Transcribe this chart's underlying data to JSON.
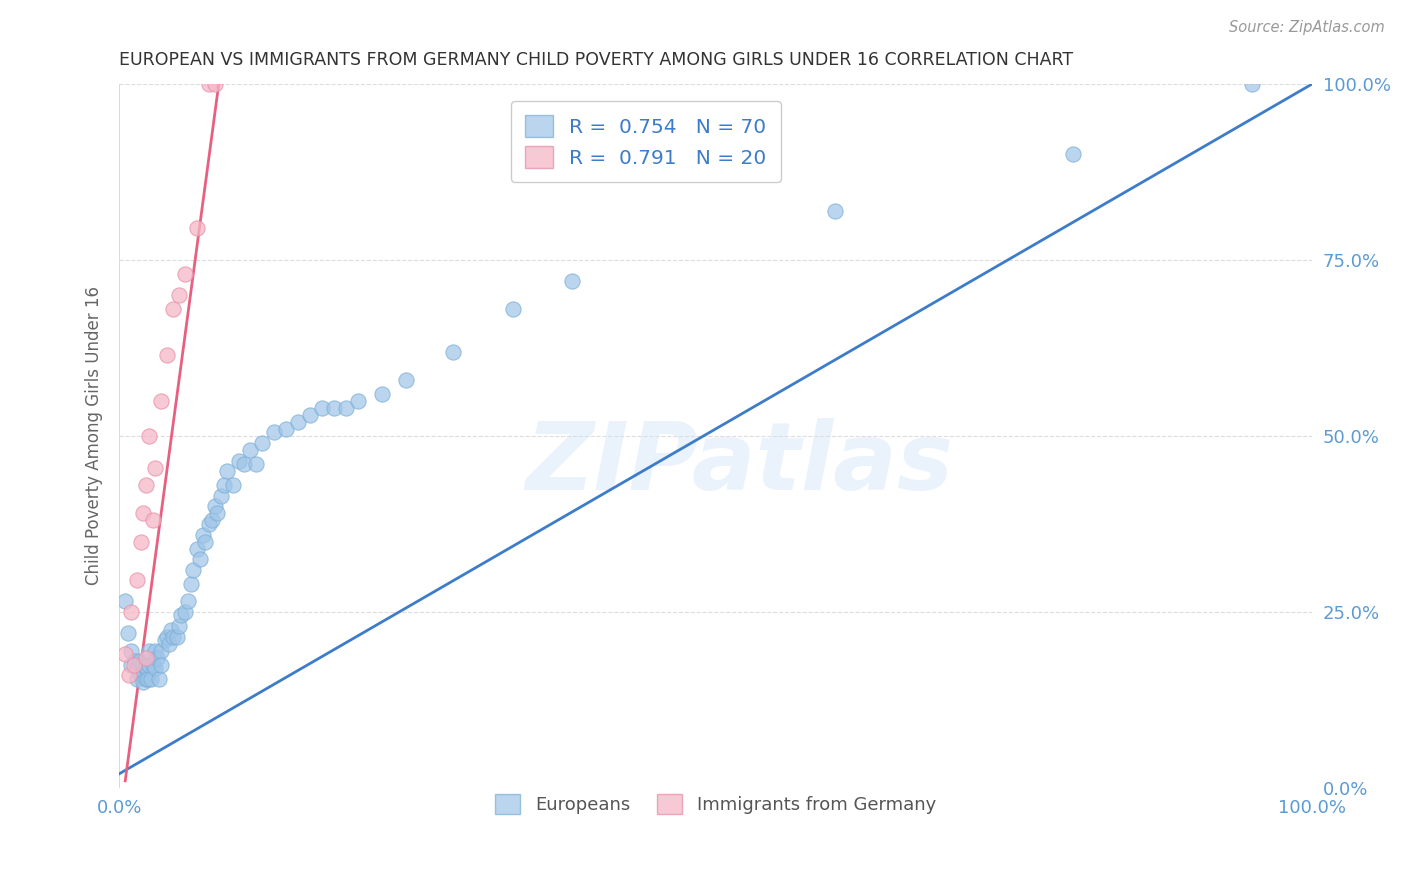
{
  "title": "EUROPEAN VS IMMIGRANTS FROM GERMANY CHILD POVERTY AMONG GIRLS UNDER 16 CORRELATION CHART",
  "source": "Source: ZipAtlas.com",
  "ylabel": "Child Poverty Among Girls Under 16",
  "xlim": [
    0,
    1
  ],
  "ylim": [
    0,
    1
  ],
  "ytick_positions": [
    0,
    0.25,
    0.5,
    0.75,
    1.0
  ],
  "ytick_labels": [
    "",
    "25.0%",
    "50.0%",
    "75.0%",
    "100.0%"
  ],
  "ytick_labels_right": [
    "0.0%",
    "25.0%",
    "50.0%",
    "75.0%",
    "100.0%"
  ],
  "xtick_positions": [
    0.0,
    1.0
  ],
  "xtick_labels": [
    "0.0%",
    "100.0%"
  ],
  "background_color": "#ffffff",
  "watermark_text": "ZIPatlas",
  "legend_r1": "R =  0.754",
  "legend_n1": "N = 70",
  "legend_r2": "R =  0.791",
  "legend_n2": "N = 20",
  "blue_color": "#9ec4e8",
  "blue_edge_color": "#7aaed4",
  "pink_color": "#f5b8c8",
  "pink_edge_color": "#e890a8",
  "blue_line_color": "#3d7cc9",
  "pink_line_color": "#e86080",
  "title_color": "#333333",
  "axis_label_color": "#666666",
  "right_tick_color": "#5b9bd5",
  "bottom_tick_color": "#5b9bd5",
  "grid_color": "#dddddd",
  "blue_scatter_x": [
    0.005,
    0.007,
    0.01,
    0.01,
    0.013,
    0.015,
    0.015,
    0.017,
    0.018,
    0.02,
    0.02,
    0.022,
    0.022,
    0.023,
    0.024,
    0.025,
    0.025,
    0.027,
    0.028,
    0.03,
    0.03,
    0.032,
    0.033,
    0.035,
    0.035,
    0.038,
    0.04,
    0.042,
    0.043,
    0.045,
    0.048,
    0.05,
    0.052,
    0.055,
    0.058,
    0.06,
    0.062,
    0.065,
    0.068,
    0.07,
    0.072,
    0.075,
    0.078,
    0.08,
    0.082,
    0.085,
    0.088,
    0.09,
    0.095,
    0.1,
    0.105,
    0.11,
    0.115,
    0.12,
    0.13,
    0.14,
    0.15,
    0.16,
    0.17,
    0.18,
    0.19,
    0.2,
    0.22,
    0.24,
    0.28,
    0.33,
    0.38,
    0.6,
    0.8,
    0.95
  ],
  "blue_scatter_y": [
    0.265,
    0.22,
    0.195,
    0.175,
    0.18,
    0.17,
    0.155,
    0.18,
    0.16,
    0.175,
    0.15,
    0.175,
    0.155,
    0.17,
    0.155,
    0.195,
    0.175,
    0.155,
    0.175,
    0.195,
    0.17,
    0.185,
    0.155,
    0.195,
    0.175,
    0.21,
    0.215,
    0.205,
    0.225,
    0.215,
    0.215,
    0.23,
    0.245,
    0.25,
    0.265,
    0.29,
    0.31,
    0.34,
    0.325,
    0.36,
    0.35,
    0.375,
    0.38,
    0.4,
    0.39,
    0.415,
    0.43,
    0.45,
    0.43,
    0.465,
    0.46,
    0.48,
    0.46,
    0.49,
    0.505,
    0.51,
    0.52,
    0.53,
    0.54,
    0.54,
    0.54,
    0.55,
    0.56,
    0.58,
    0.62,
    0.68,
    0.72,
    0.82,
    0.9,
    1.0
  ],
  "pink_scatter_x": [
    0.005,
    0.008,
    0.01,
    0.012,
    0.015,
    0.018,
    0.02,
    0.022,
    0.022,
    0.025,
    0.028,
    0.03,
    0.035,
    0.04,
    0.045,
    0.05,
    0.055,
    0.065,
    0.075,
    0.08
  ],
  "pink_scatter_y": [
    0.19,
    0.16,
    0.25,
    0.175,
    0.295,
    0.35,
    0.39,
    0.43,
    0.185,
    0.5,
    0.38,
    0.455,
    0.55,
    0.615,
    0.68,
    0.7,
    0.73,
    0.795,
    1.0,
    1.0
  ],
  "blue_line_x": [
    0.0,
    1.0
  ],
  "blue_line_y": [
    0.02,
    1.0
  ],
  "pink_line_x": [
    0.005,
    0.085
  ],
  "pink_line_y": [
    0.01,
    1.02
  ]
}
